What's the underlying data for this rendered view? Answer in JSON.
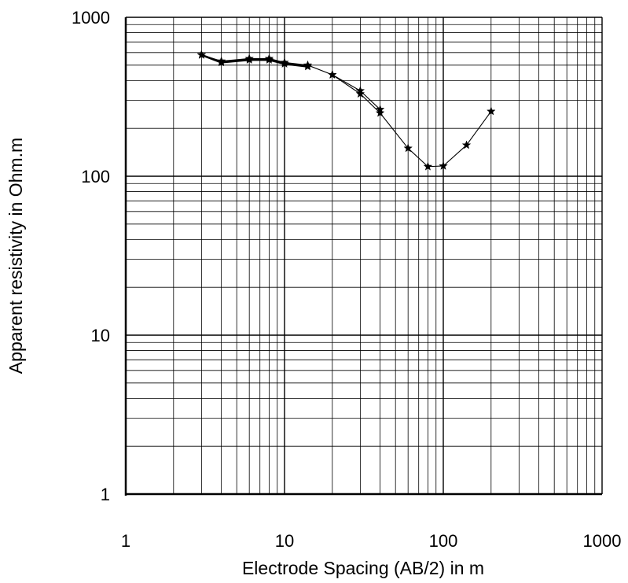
{
  "chart_data": {
    "type": "scatter",
    "title": "",
    "xlabel": "Electrode Spacing (AB/2) in m",
    "ylabel": "Apparent resistivity in Ohm.m",
    "x_scale": "log",
    "y_scale": "log",
    "xlim": [
      1,
      1000
    ],
    "ylim": [
      1,
      1000
    ],
    "x_tick_labels": [
      "1",
      "10",
      "100",
      "1000"
    ],
    "y_tick_labels": [
      "1",
      "10",
      "100",
      "1000"
    ],
    "grid": true,
    "legend": "none",
    "marker": "star",
    "series": [
      {
        "line_style": "thick",
        "x": [
          3,
          4,
          6,
          8,
          10,
          14
        ],
        "y": [
          580,
          520,
          540,
          540,
          510,
          490
        ]
      },
      {
        "line_style": "thin",
        "x": [
          3,
          4,
          6,
          8,
          10,
          14,
          20,
          30,
          40,
          60,
          80,
          100,
          140,
          200
        ],
        "y": [
          580,
          530,
          550,
          550,
          520,
          500,
          435,
          330,
          250,
          150,
          115,
          116,
          157,
          256
        ]
      },
      {
        "line_style": "thin",
        "x": [
          20,
          30,
          40
        ],
        "y": [
          435,
          345,
          263
        ]
      }
    ]
  }
}
